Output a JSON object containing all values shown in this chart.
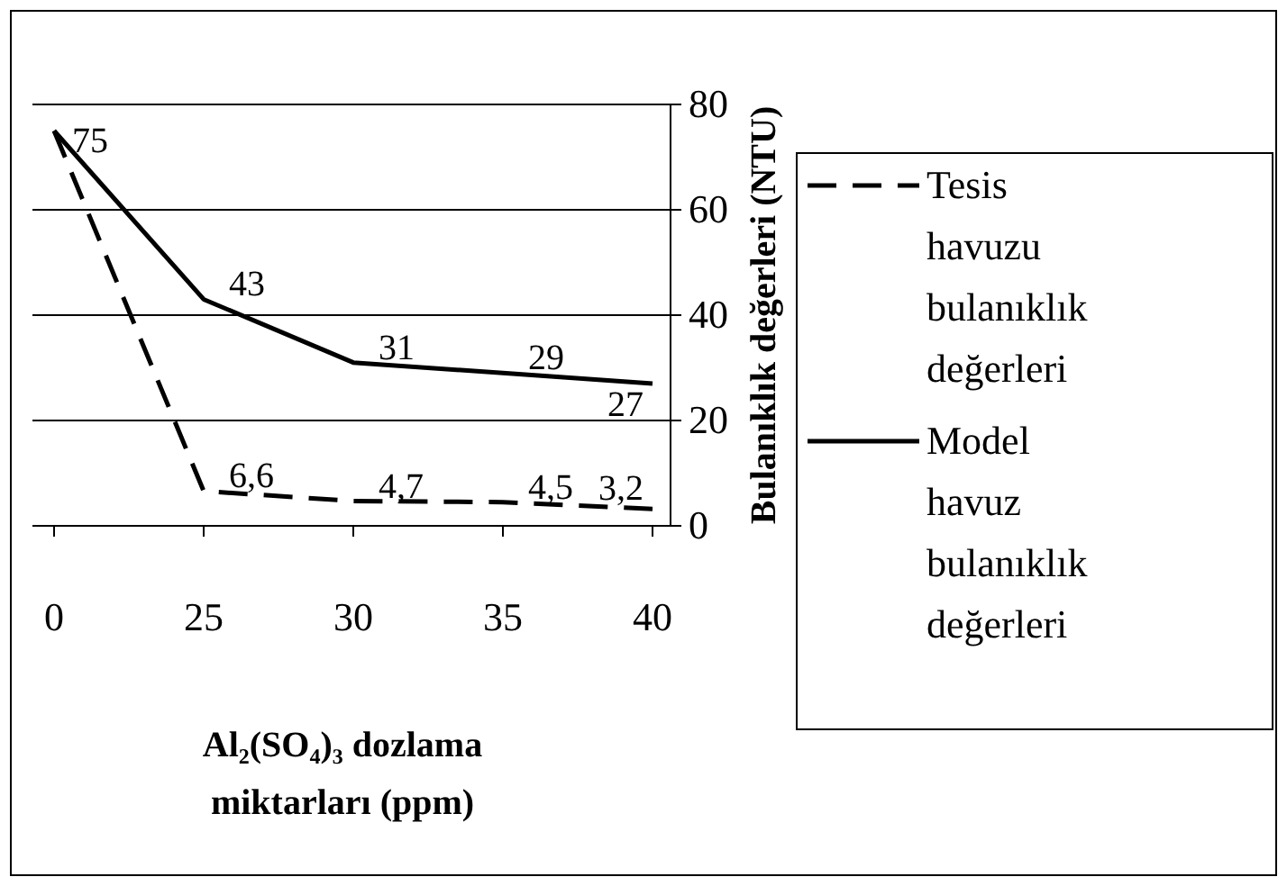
{
  "chart_data": {
    "type": "line",
    "xlabel": "Al₂(SO₄)₃ dozlama miktarları (ppm)",
    "ylabel": "Bulanıklık değerleri (NTU)",
    "categories": [
      "0",
      "25",
      "30",
      "35",
      "40"
    ],
    "series": [
      {
        "name": "Tesis havuzu bulanıklık değerleri",
        "color": "#000000",
        "line_style": "dashed",
        "values": [
          75,
          6.6,
          4.7,
          4.5,
          3.2
        ],
        "value_labels": [
          null,
          "6,6",
          "4,7",
          "4,5",
          "3,2"
        ]
      },
      {
        "name": "Model havuz bulanıklık değerleri",
        "color": "#000000",
        "line_style": "solid",
        "values": [
          75,
          43,
          31,
          29,
          27
        ],
        "value_labels": [
          "75",
          "43",
          "31",
          "29",
          "27"
        ]
      }
    ],
    "ylim": [
      0,
      80
    ],
    "yticks": [
      0,
      20,
      40,
      60,
      80
    ],
    "grid": "y",
    "legend": "right",
    "marker": "none"
  }
}
